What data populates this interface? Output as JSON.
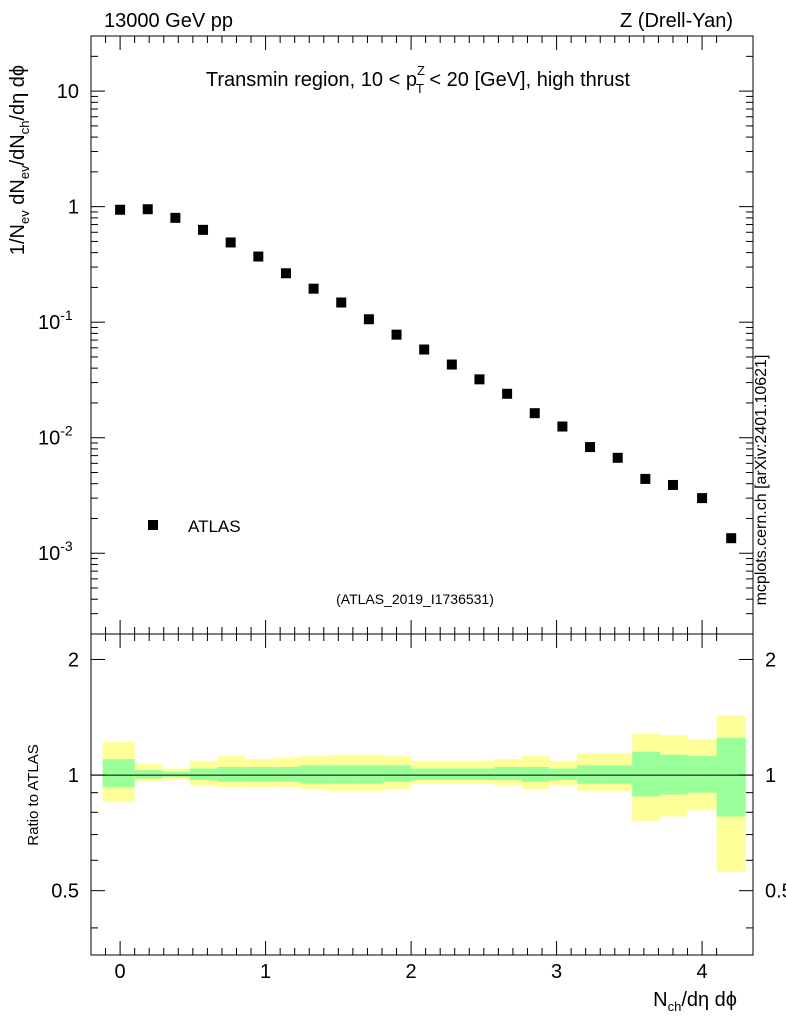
{
  "header": {
    "left": "13000 GeV pp",
    "right": "Z (Drell-Yan)"
  },
  "side_label": "mcplots.cern.ch [arXiv:2401.10621]",
  "colors": {
    "band_outer": "#ffff99",
    "band_inner": "#99ff99",
    "marker": "#000000",
    "frame": "#000000",
    "watermark": "#999999"
  },
  "chart_data": [
    {
      "type": "scatter",
      "title_parts": {
        "pre": "Transmin region, 10 < p",
        "sup": "Z",
        "sub": "T",
        "post": " < 20 [GeV], high thrust"
      },
      "ylabel": "1/N_ev dN_ev/dN_ch/dη dϕ",
      "yscale": "log",
      "ylim": [
        0.0002,
        30
      ],
      "xlim": [
        -0.2,
        4.35
      ],
      "y_tick_labels": [
        "10",
        "1",
        "10^-1",
        "10^-2",
        "10^-3"
      ],
      "legend": {
        "label": "ATLAS",
        "position": "bottom-left"
      },
      "watermark": "(ATLAS_2019_I1736531)",
      "series": [
        {
          "name": "ATLAS",
          "x": [
            0.0,
            0.19,
            0.38,
            0.57,
            0.76,
            0.95,
            1.14,
            1.33,
            1.52,
            1.71,
            1.9,
            2.09,
            2.28,
            2.47,
            2.66,
            2.85,
            3.04,
            3.23,
            3.42,
            3.61,
            3.8,
            4.0,
            4.2
          ],
          "values": [
            0.94,
            0.95,
            0.8,
            0.63,
            0.49,
            0.37,
            0.265,
            0.195,
            0.148,
            0.106,
            0.078,
            0.058,
            0.043,
            0.032,
            0.024,
            0.0163,
            0.0125,
            0.0083,
            0.0067,
            0.0044,
            0.0039,
            0.003,
            0.00135
          ]
        }
      ]
    },
    {
      "type": "area",
      "ylabel": "Ratio to ATLAS",
      "xlabel": "N_ch/dη dϕ",
      "ylim": [
        0.34,
        2.33
      ],
      "xlim": [
        -0.2,
        4.35
      ],
      "x_tick_labels": [
        "0",
        "1",
        "2",
        "3",
        "4"
      ],
      "y_tick_labels": [
        "0.5",
        "1",
        "2"
      ],
      "reference_line": 1.0,
      "bin_edges": [
        -0.12,
        0.1,
        0.29,
        0.48,
        0.67,
        0.86,
        1.05,
        1.24,
        1.43,
        1.62,
        1.81,
        2.0,
        2.19,
        2.38,
        2.57,
        2.76,
        2.95,
        3.14,
        3.33,
        3.52,
        3.71,
        3.9,
        4.1,
        4.3
      ],
      "bands": {
        "outer_high": [
          1.22,
          1.07,
          1.04,
          1.09,
          1.12,
          1.1,
          1.11,
          1.12,
          1.13,
          1.13,
          1.12,
          1.09,
          1.09,
          1.09,
          1.1,
          1.12,
          1.09,
          1.14,
          1.14,
          1.28,
          1.27,
          1.24,
          1.43
        ],
        "outer_low": [
          0.85,
          0.96,
          0.97,
          0.94,
          0.93,
          0.93,
          0.93,
          0.92,
          0.91,
          0.91,
          0.92,
          0.95,
          0.95,
          0.95,
          0.94,
          0.92,
          0.94,
          0.91,
          0.91,
          0.76,
          0.78,
          0.81,
          0.56
        ],
        "inner_high": [
          1.1,
          1.03,
          1.02,
          1.04,
          1.05,
          1.05,
          1.05,
          1.06,
          1.06,
          1.06,
          1.06,
          1.04,
          1.04,
          1.04,
          1.05,
          1.05,
          1.04,
          1.06,
          1.06,
          1.15,
          1.13,
          1.12,
          1.25
        ],
        "inner_low": [
          0.93,
          0.98,
          0.99,
          0.97,
          0.96,
          0.96,
          0.96,
          0.95,
          0.95,
          0.95,
          0.96,
          0.97,
          0.97,
          0.97,
          0.97,
          0.96,
          0.97,
          0.95,
          0.95,
          0.88,
          0.89,
          0.9,
          0.78
        ]
      }
    }
  ]
}
